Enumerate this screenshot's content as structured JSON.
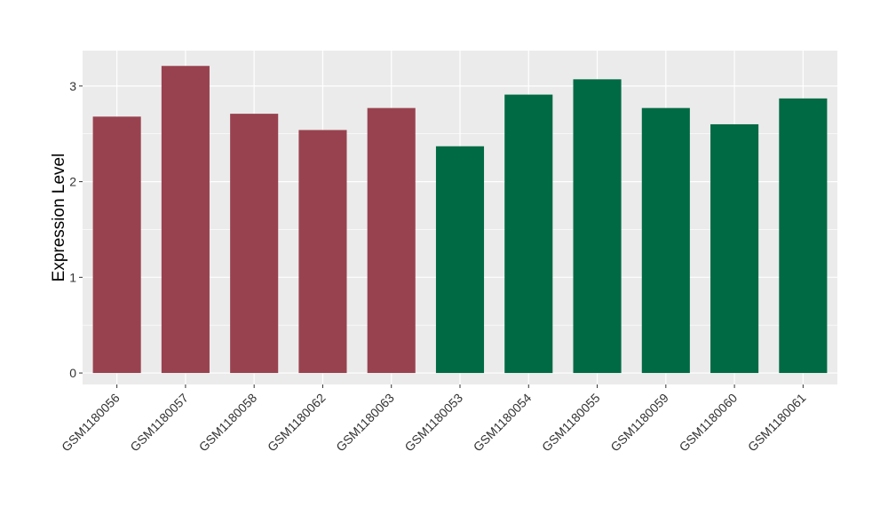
{
  "chart_data": {
    "type": "bar",
    "title": "",
    "xlabel": "",
    "ylabel": "Expression Level",
    "ylim": [
      -0.12,
      3.37
    ],
    "yticks": [
      0,
      1,
      2,
      3
    ],
    "grid": true,
    "legend": "none",
    "panel_background": "#EBEBEB",
    "grid_color": "#FFFFFF",
    "categories": [
      "GSM1180056",
      "GSM1180057",
      "GSM1180058",
      "GSM1180062",
      "GSM1180063",
      "GSM1180053",
      "GSM1180054",
      "GSM1180055",
      "GSM1180059",
      "GSM1180060",
      "GSM1180061"
    ],
    "values": [
      2.68,
      3.21,
      2.71,
      2.54,
      2.77,
      2.37,
      2.91,
      3.07,
      2.77,
      2.6,
      2.87
    ],
    "colors": [
      "#99424F",
      "#99424F",
      "#99424F",
      "#99424F",
      "#99424F",
      "#006A44",
      "#006A44",
      "#006A44",
      "#006A44",
      "#006A44",
      "#006A44"
    ]
  }
}
